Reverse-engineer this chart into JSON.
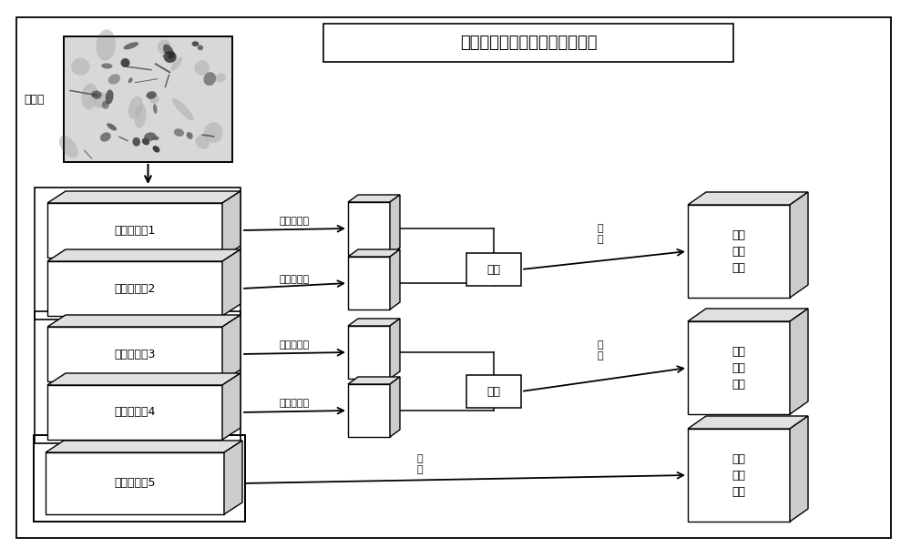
{
  "title": "高低耦合并行融合生成三类特征",
  "title_fontsize": 13,
  "label_fontsize": 10,
  "small_fontsize": 9,
  "tiny_fontsize": 8,
  "bg_color": "#ffffff",
  "block_labels": [
    "残差卷积块1",
    "残差卷积块2",
    "残差卷积块3",
    "残差卷积块4",
    "残差卷积块5"
  ],
  "image_label": "原图片",
  "high_label1": "高耦合合成",
  "low_label1": "低耦合合成",
  "high_label2": "高耦合合成",
  "low_label2": "低耦合合成",
  "pingjie_label": "拼接",
  "juanji_label": "卷\n积",
  "output_labels": [
    "低级\n细节\n特征",
    "中级\n综合\n特征",
    "高级\n语义\n特征"
  ]
}
